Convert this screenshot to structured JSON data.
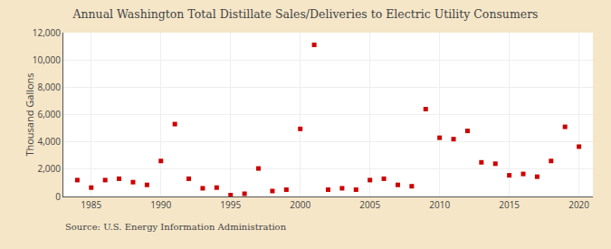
{
  "chart_data": {
    "type": "scatter",
    "title": "Annual Washington Total Distillate Sales/Deliveries to Electric Utility Consumers",
    "y_label": "Thousand Gallons",
    "annotations": [
      "Source: U.S. Energy Information Administration"
    ],
    "x": [
      1984,
      1985,
      1986,
      1987,
      1988,
      1989,
      1990,
      1991,
      1992,
      1993,
      1994,
      1995,
      1996,
      1997,
      1998,
      1999,
      2000,
      2001,
      2002,
      2003,
      2004,
      2005,
      2006,
      2007,
      2008,
      2009,
      2010,
      2011,
      2012,
      2013,
      2014,
      2015,
      2016,
      2017,
      2018,
      2019,
      2020
    ],
    "values": [
      1200,
      650,
      1200,
      1300,
      1050,
      850,
      2600,
      5300,
      1300,
      600,
      650,
      100,
      200,
      2050,
      400,
      500,
      4950,
      11100,
      500,
      600,
      500,
      1200,
      1300,
      850,
      750,
      6400,
      4300,
      4200,
      4800,
      2500,
      2400,
      1550,
      1650,
      1450,
      2600,
      5100,
      3650
    ],
    "color": "#cc0000",
    "marker": "square",
    "xlim": [
      1983,
      2021
    ],
    "xticks": [
      1985,
      1990,
      1995,
      2000,
      2005,
      2010,
      2015,
      2020
    ],
    "ylim": [
      0,
      12000
    ],
    "yticks": [
      0,
      {
        "value": 2000,
        "label": "2,000"
      },
      {
        "value": 4000,
        "label": "4,000"
      },
      {
        "value": 6000,
        "label": "6,000"
      },
      {
        "value": 8000,
        "label": "8,000"
      },
      {
        "value": 10000,
        "label": "10,000"
      },
      {
        "value": 12000,
        "label": "12,000"
      }
    ],
    "grid": true
  }
}
